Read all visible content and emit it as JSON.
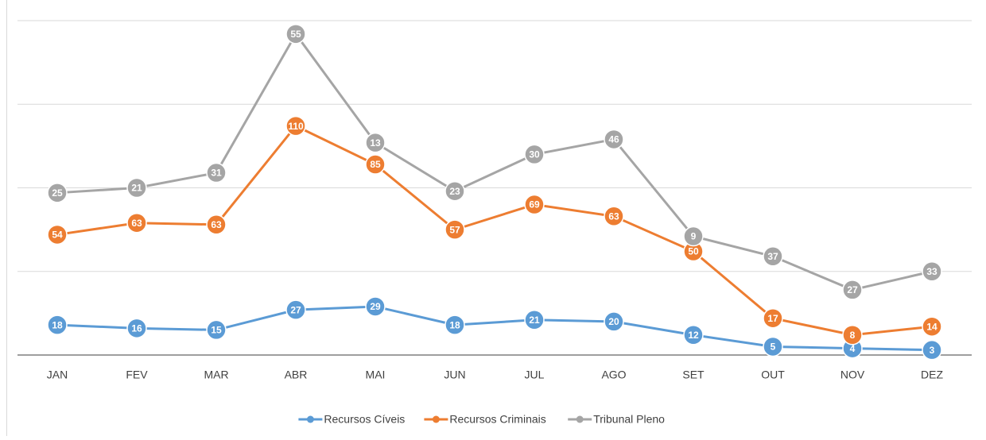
{
  "chart_data": {
    "type": "line",
    "stacked": true,
    "categories": [
      "JAN",
      "FEV",
      "MAR",
      "ABR",
      "MAI",
      "JUN",
      "JUL",
      "AGO",
      "SET",
      "OUT",
      "NOV",
      "DEZ"
    ],
    "series": [
      {
        "name": "Recursos Cíveis",
        "color": "#5b9bd5",
        "values": [
          18,
          16,
          15,
          27,
          29,
          18,
          21,
          20,
          12,
          5,
          4,
          3
        ]
      },
      {
        "name": "Recursos Criminais",
        "color": "#ed7d31",
        "values": [
          54,
          63,
          63,
          110,
          85,
          57,
          69,
          63,
          50,
          17,
          8,
          14
        ]
      },
      {
        "name": "Tribunal Pleno",
        "color": "#a5a5a5",
        "values": [
          25,
          21,
          31,
          55,
          13,
          23,
          30,
          46,
          9,
          37,
          27,
          33
        ]
      }
    ],
    "ylim": [
      0,
      200
    ],
    "yticks": [
      0,
      50,
      100,
      150,
      200
    ],
    "grid": true,
    "legend": "bottom"
  }
}
